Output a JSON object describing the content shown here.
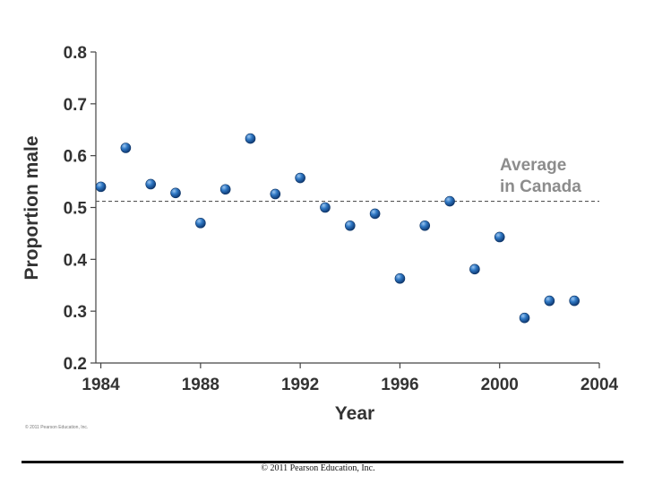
{
  "chart_data": {
    "type": "scatter",
    "xlabel": "Year",
    "ylabel": "Proportion male",
    "xlim": [
      1983.8,
      2004
    ],
    "ylim": [
      0.2,
      0.8
    ],
    "x_ticks": [
      1984,
      1988,
      1992,
      1996,
      2000,
      2004
    ],
    "y_ticks": [
      0.2,
      0.3,
      0.4,
      0.5,
      0.6,
      0.7,
      0.8
    ],
    "x_tick_labels": [
      "1984",
      "1988",
      "1992",
      "1996",
      "2000",
      "2004"
    ],
    "y_tick_labels": [
      "0.2",
      "0.3",
      "0.4",
      "0.5",
      "0.6",
      "0.7",
      "0.8"
    ],
    "points": [
      {
        "x": 1984,
        "y": 0.54
      },
      {
        "x": 1985,
        "y": 0.615
      },
      {
        "x": 1986,
        "y": 0.545
      },
      {
        "x": 1987,
        "y": 0.528
      },
      {
        "x": 1988,
        "y": 0.47
      },
      {
        "x": 1989,
        "y": 0.535
      },
      {
        "x": 1990,
        "y": 0.633
      },
      {
        "x": 1991,
        "y": 0.526
      },
      {
        "x": 1992,
        "y": 0.557
      },
      {
        "x": 1993,
        "y": 0.5
      },
      {
        "x": 1994,
        "y": 0.465
      },
      {
        "x": 1995,
        "y": 0.488
      },
      {
        "x": 1996,
        "y": 0.363
      },
      {
        "x": 1997,
        "y": 0.465
      },
      {
        "x": 1998,
        "y": 0.512
      },
      {
        "x": 1999,
        "y": 0.381
      },
      {
        "x": 2000,
        "y": 0.443
      },
      {
        "x": 2001,
        "y": 0.287
      },
      {
        "x": 2002,
        "y": 0.32
      },
      {
        "x": 2003,
        "y": 0.32
      }
    ],
    "reference_line": {
      "y": 0.512,
      "style": "dashed",
      "label_lines": [
        "Average",
        "in Canada"
      ]
    },
    "marker_color": "#1e5fa6",
    "grid": false
  },
  "image_credit": "© 2011 Pearson Education, Inc.",
  "footer_text": "© 2011 Pearson Education, Inc."
}
